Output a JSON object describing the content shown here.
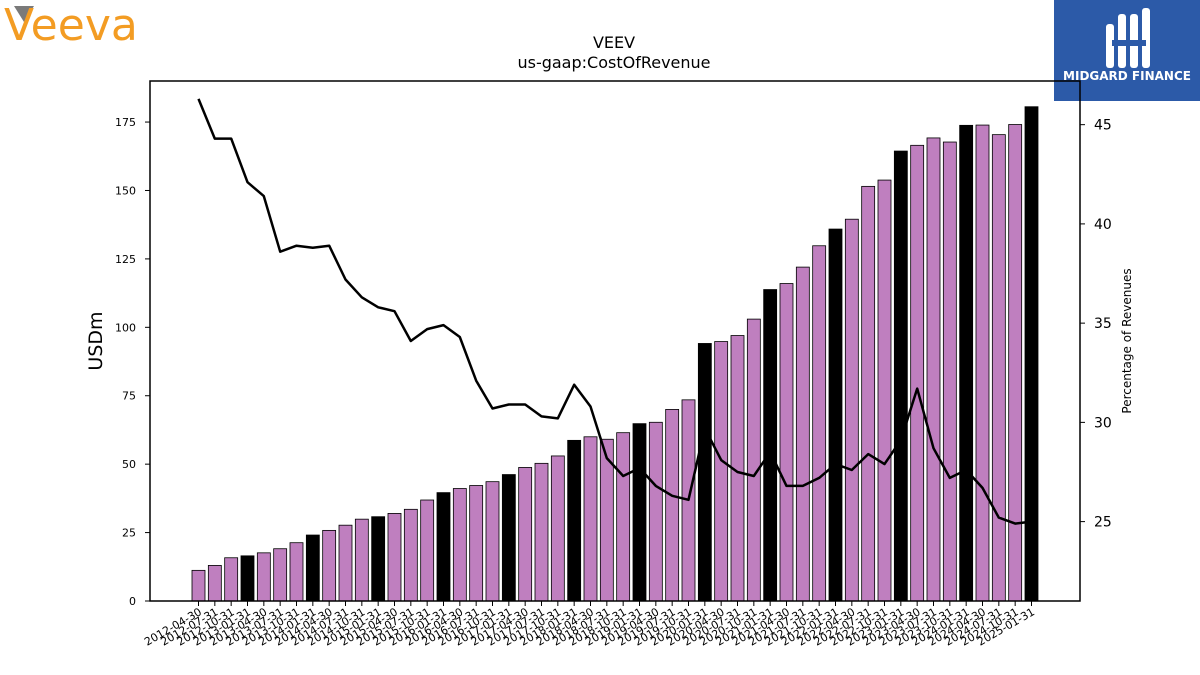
{
  "brand": {
    "logo_text": "Veeva",
    "logo_color": "#f39c23"
  },
  "badge": {
    "text": "MIDGARD FINANCE",
    "bg_color": "#2c5aa8"
  },
  "chart_data": {
    "type": "bar",
    "title": "VEEV",
    "subtitle": "us-gaap:CostOfRevenue",
    "ylabel": "USDm",
    "y2label": "Percentage of Revenues",
    "ylim": [
      0,
      190
    ],
    "y2lim": [
      21,
      47.2
    ],
    "yticks": [
      0,
      25,
      50,
      75,
      100,
      125,
      150,
      175
    ],
    "y2ticks": [
      25,
      30,
      35,
      40,
      45
    ],
    "bar_color": "#bf7fbf",
    "highlight_color": "#000000",
    "line_color": "#000000",
    "categories": [
      "2012-04-30",
      "2012-07-31",
      "2012-10-31",
      "2013-01-31",
      "2013-04-30",
      "2013-07-31",
      "2013-10-31",
      "2014-01-31",
      "2014-04-30",
      "2014-07-31",
      "2014-10-31",
      "2015-01-31",
      "2015-04-30",
      "2015-07-31",
      "2015-10-31",
      "2016-01-31",
      "2016-04-30",
      "2016-07-31",
      "2016-10-31",
      "2017-01-31",
      "2017-04-30",
      "2017-07-31",
      "2017-10-31",
      "2018-01-31",
      "2018-04-30",
      "2018-07-31",
      "2018-10-31",
      "2019-01-31",
      "2019-04-30",
      "2019-07-31",
      "2019-10-31",
      "2020-01-31",
      "2020-04-30",
      "2020-07-31",
      "2020-10-31",
      "2021-01-31",
      "2021-04-30",
      "2021-07-31",
      "2021-10-31",
      "2022-01-31",
      "2022-04-30",
      "2022-07-31",
      "2022-10-31",
      "2023-01-31",
      "2023-04-30",
      "2023-07-31",
      "2023-10-31",
      "2024-01-31",
      "2024-04-30",
      "2024-07-31",
      "2024-10-31",
      "2025-01-31"
    ],
    "series": [
      {
        "values": [
          11.2,
          13.0,
          15.8,
          16.5,
          17.6,
          19.1,
          21.3,
          24.1,
          25.8,
          27.7,
          29.9,
          30.8,
          32.0,
          33.5,
          36.9,
          39.6,
          41.1,
          42.2,
          43.6,
          46.2,
          48.8,
          50.3,
          53.0,
          58.7,
          60.0,
          59.1,
          61.5,
          64.8,
          65.3,
          70.0,
          73.5,
          94.1,
          94.8,
          97.0,
          103.0,
          113.8,
          116.0,
          122.0,
          129.8,
          135.9,
          139.5,
          151.5,
          153.8,
          164.4,
          166.5,
          169.2,
          167.7,
          173.8,
          173.9,
          170.4,
          174.1,
          180.6
        ]
      },
      {
        "values": [
          46.3,
          44.3,
          44.3,
          42.1,
          41.4,
          38.6,
          38.9,
          38.8,
          38.9,
          37.2,
          36.3,
          35.8,
          35.6,
          34.1,
          34.7,
          34.9,
          34.3,
          32.1,
          30.7,
          30.9,
          30.9,
          30.3,
          30.2,
          31.9,
          30.8,
          28.2,
          27.3,
          27.7,
          26.8,
          26.3,
          26.1,
          29.7,
          28.1,
          27.5,
          27.3,
          28.5,
          26.8,
          26.8,
          27.2,
          27.9,
          27.6,
          28.4,
          27.9,
          29.1,
          31.7,
          28.7,
          27.2,
          27.6,
          26.7,
          25.2,
          24.9,
          25.0
        ]
      }
    ],
    "highlight_indices": [
      3,
      7,
      11,
      15,
      19,
      23,
      27,
      31,
      35,
      39,
      43,
      47,
      51
    ]
  }
}
